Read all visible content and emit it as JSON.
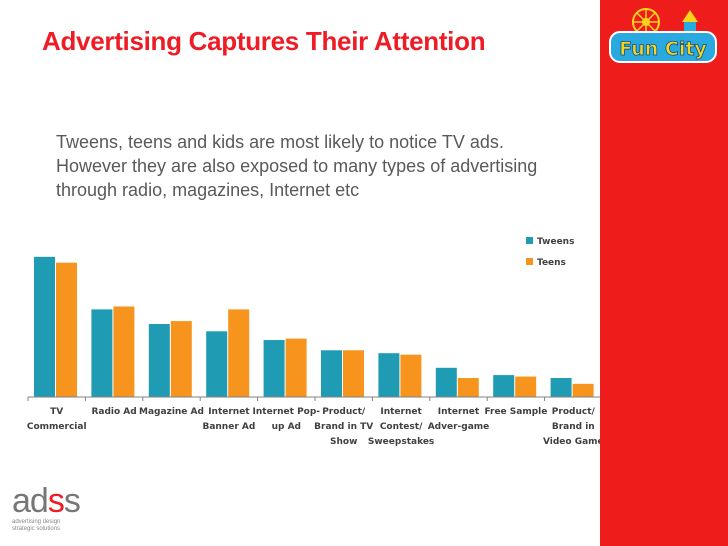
{
  "title": "Advertising Captures Their Attention",
  "body_lines": [
    "Tweens, teens and kids are most likely to notice TV ads.",
    "However they are also exposed to many types of advertising",
    "through radio, magazines, Internet etc"
  ],
  "logo_funcity": "Fun City",
  "logo_adss": {
    "word_a": "a",
    "word_d": "d",
    "word_s1": "s",
    "word_s2": "s",
    "tagline": [
      "advertising design",
      "strategic solutions"
    ]
  },
  "colors": {
    "tweens": "#1f9bb4",
    "teens": "#f7941d",
    "brand_red": "#ef1c1c"
  },
  "chart_data": {
    "type": "bar",
    "categories": [
      [
        "TV",
        "Commercial"
      ],
      [
        "Radio Ad"
      ],
      [
        "Magazine Ad"
      ],
      [
        "Internet",
        "Banner Ad"
      ],
      [
        "Internet Pop-",
        "up Ad"
      ],
      [
        "Product/",
        "Brand in TV",
        "Show"
      ],
      [
        "Internet",
        "Contest/",
        "Sweepstakes"
      ],
      [
        "Internet",
        "Adver-game"
      ],
      [
        "Free Sample"
      ],
      [
        "Product/",
        "Brand in",
        "Video Game"
      ]
    ],
    "series": [
      {
        "name": "Tweens",
        "values": [
          96,
          60,
          50,
          45,
          39,
          32,
          30,
          20,
          15,
          13
        ]
      },
      {
        "name": "Teens",
        "values": [
          92,
          62,
          52,
          60,
          40,
          32,
          29,
          13,
          14,
          9
        ]
      }
    ],
    "ylim": [
      0,
      100
    ],
    "grid": false,
    "legend": "top-right"
  }
}
